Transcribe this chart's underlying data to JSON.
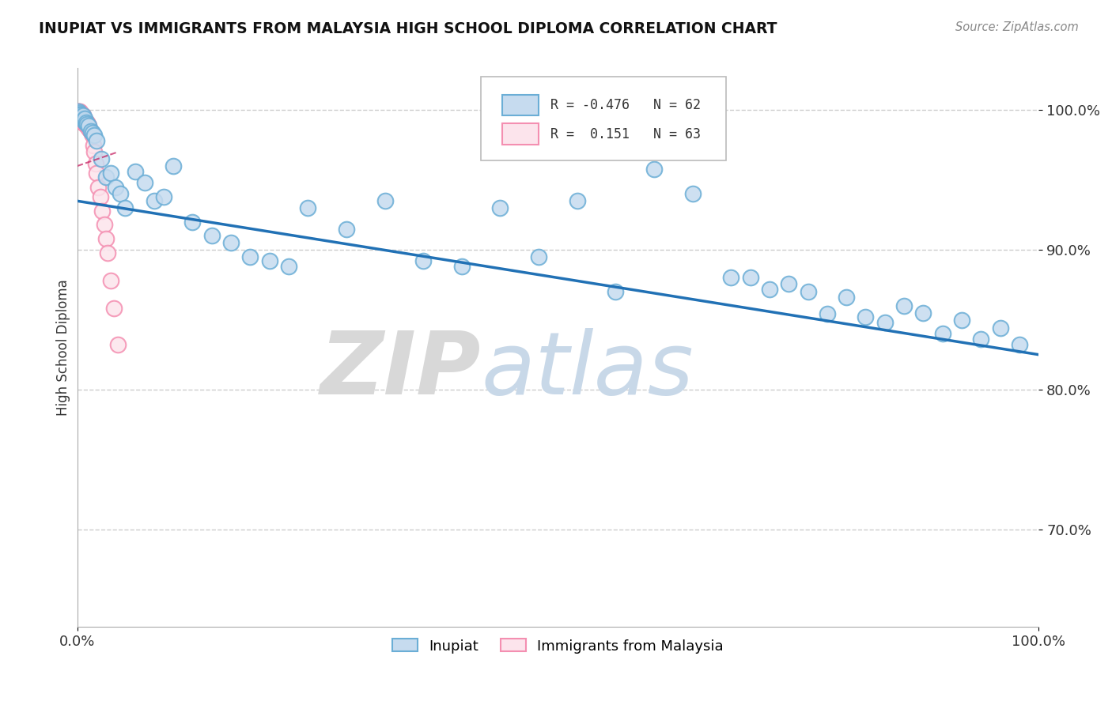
{
  "title": "INUPIAT VS IMMIGRANTS FROM MALAYSIA HIGH SCHOOL DIPLOMA CORRELATION CHART",
  "source": "Source: ZipAtlas.com",
  "ylabel": "High School Diploma",
  "blue_color": "#6baed6",
  "pink_color": "#f48fb1",
  "blue_fill": "#c6dbef",
  "pink_fill": "#fce4ec",
  "trendline_blue": "#2171b5",
  "trendline_pink": "#c2185b",
  "r_blue": "-0.476",
  "n_blue": "62",
  "r_pink": "0.151",
  "n_pink": "63",
  "label_blue": "Inupiat",
  "label_pink": "Immigrants from Malaysia",
  "xlim": [
    0.0,
    1.0
  ],
  "ylim": [
    0.63,
    1.03
  ],
  "ytick_vals": [
    0.7,
    0.8,
    0.9,
    1.0
  ],
  "ytick_labels": [
    "70.0%",
    "80.0%",
    "90.0%",
    "100.0%"
  ],
  "inupiat_x": [
    0.001,
    0.002,
    0.003,
    0.003,
    0.004,
    0.005,
    0.005,
    0.006,
    0.007,
    0.008,
    0.008,
    0.009,
    0.01,
    0.012,
    0.014,
    0.016,
    0.018,
    0.02,
    0.025,
    0.03,
    0.035,
    0.04,
    0.045,
    0.05,
    0.06,
    0.07,
    0.08,
    0.09,
    0.1,
    0.12,
    0.14,
    0.16,
    0.18,
    0.2,
    0.22,
    0.24,
    0.28,
    0.32,
    0.36,
    0.4,
    0.44,
    0.48,
    0.52,
    0.56,
    0.6,
    0.64,
    0.68,
    0.7,
    0.72,
    0.74,
    0.76,
    0.78,
    0.8,
    0.82,
    0.84,
    0.86,
    0.88,
    0.9,
    0.92,
    0.94,
    0.96,
    0.98
  ],
  "inupiat_y": [
    0.999,
    0.998,
    0.997,
    0.996,
    0.997,
    0.995,
    0.994,
    0.996,
    0.993,
    0.992,
    0.994,
    0.991,
    0.99,
    0.989,
    0.985,
    0.984,
    0.982,
    0.978,
    0.965,
    0.952,
    0.955,
    0.945,
    0.94,
    0.93,
    0.956,
    0.948,
    0.935,
    0.938,
    0.96,
    0.92,
    0.91,
    0.905,
    0.895,
    0.892,
    0.888,
    0.93,
    0.915,
    0.935,
    0.892,
    0.888,
    0.93,
    0.895,
    0.935,
    0.87,
    0.958,
    0.94,
    0.88,
    0.88,
    0.872,
    0.876,
    0.87,
    0.854,
    0.866,
    0.852,
    0.848,
    0.86,
    0.855,
    0.84,
    0.85,
    0.836,
    0.844,
    0.832
  ],
  "malaysia_x": [
    0.001,
    0.001,
    0.002,
    0.002,
    0.002,
    0.002,
    0.003,
    0.003,
    0.003,
    0.003,
    0.003,
    0.004,
    0.004,
    0.004,
    0.004,
    0.004,
    0.005,
    0.005,
    0.005,
    0.005,
    0.005,
    0.005,
    0.006,
    0.006,
    0.006,
    0.006,
    0.006,
    0.007,
    0.007,
    0.007,
    0.007,
    0.007,
    0.008,
    0.008,
    0.008,
    0.008,
    0.009,
    0.009,
    0.009,
    0.01,
    0.01,
    0.01,
    0.011,
    0.011,
    0.012,
    0.012,
    0.013,
    0.014,
    0.015,
    0.016,
    0.017,
    0.018,
    0.019,
    0.02,
    0.022,
    0.024,
    0.026,
    0.028,
    0.03,
    0.032,
    0.035,
    0.038,
    0.042
  ],
  "malaysia_y": [
    0.999,
    0.998,
    0.999,
    0.998,
    0.997,
    0.996,
    0.999,
    0.998,
    0.997,
    0.996,
    0.995,
    0.998,
    0.997,
    0.996,
    0.995,
    0.994,
    0.997,
    0.996,
    0.995,
    0.994,
    0.993,
    0.992,
    0.996,
    0.995,
    0.994,
    0.993,
    0.992,
    0.995,
    0.994,
    0.993,
    0.992,
    0.991,
    0.993,
    0.992,
    0.991,
    0.99,
    0.992,
    0.991,
    0.99,
    0.991,
    0.99,
    0.989,
    0.99,
    0.988,
    0.989,
    0.987,
    0.986,
    0.985,
    0.983,
    0.982,
    0.975,
    0.97,
    0.962,
    0.955,
    0.945,
    0.938,
    0.928,
    0.918,
    0.908,
    0.898,
    0.878,
    0.858,
    0.832
  ],
  "blue_trendline_x": [
    0.0,
    1.0
  ],
  "blue_trendline_y": [
    0.935,
    0.825
  ],
  "pink_trendline_x": [
    0.0,
    0.042
  ],
  "pink_trendline_y": [
    0.96,
    0.97
  ]
}
